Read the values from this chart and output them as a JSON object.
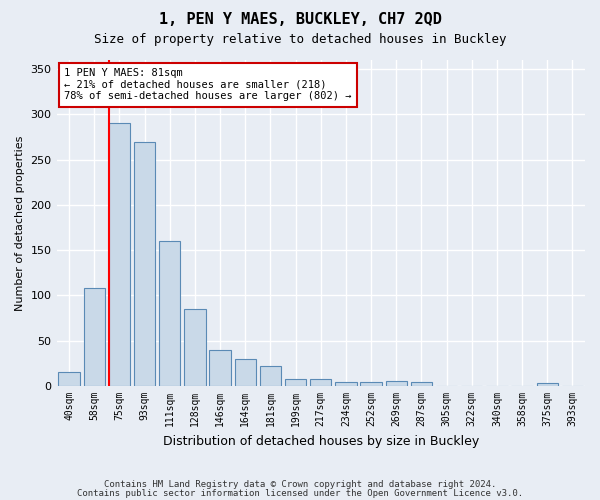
{
  "title": "1, PEN Y MAES, BUCKLEY, CH7 2QD",
  "subtitle": "Size of property relative to detached houses in Buckley",
  "xlabel": "Distribution of detached houses by size in Buckley",
  "ylabel": "Number of detached properties",
  "footnote1": "Contains HM Land Registry data © Crown copyright and database right 2024.",
  "footnote2": "Contains public sector information licensed under the Open Government Licence v3.0.",
  "annotation_line1": "1 PEN Y MAES: 81sqm",
  "annotation_line2": "← 21% of detached houses are smaller (218)",
  "annotation_line3": "78% of semi-detached houses are larger (802) →",
  "bin_labels": [
    "40sqm",
    "58sqm",
    "75sqm",
    "93sqm",
    "111sqm",
    "128sqm",
    "146sqm",
    "164sqm",
    "181sqm",
    "199sqm",
    "217sqm",
    "234sqm",
    "252sqm",
    "269sqm",
    "287sqm",
    "305sqm",
    "322sqm",
    "340sqm",
    "358sqm",
    "375sqm",
    "393sqm"
  ],
  "bar_values": [
    15,
    108,
    290,
    270,
    160,
    85,
    40,
    30,
    22,
    8,
    8,
    5,
    4,
    6,
    4,
    0,
    0,
    0,
    0,
    3,
    0
  ],
  "bar_color": "#c9d9e8",
  "bar_edge_color": "#5a8ab5",
  "ylim": [
    0,
    360
  ],
  "yticks": [
    0,
    50,
    100,
    150,
    200,
    250,
    300,
    350
  ],
  "background_color": "#e8edf4",
  "plot_bg_color": "#e8edf4",
  "grid_color": "#ffffff",
  "box_color": "#ffffff",
  "box_edge_color": "#cc0000",
  "red_line_x": 1.575
}
